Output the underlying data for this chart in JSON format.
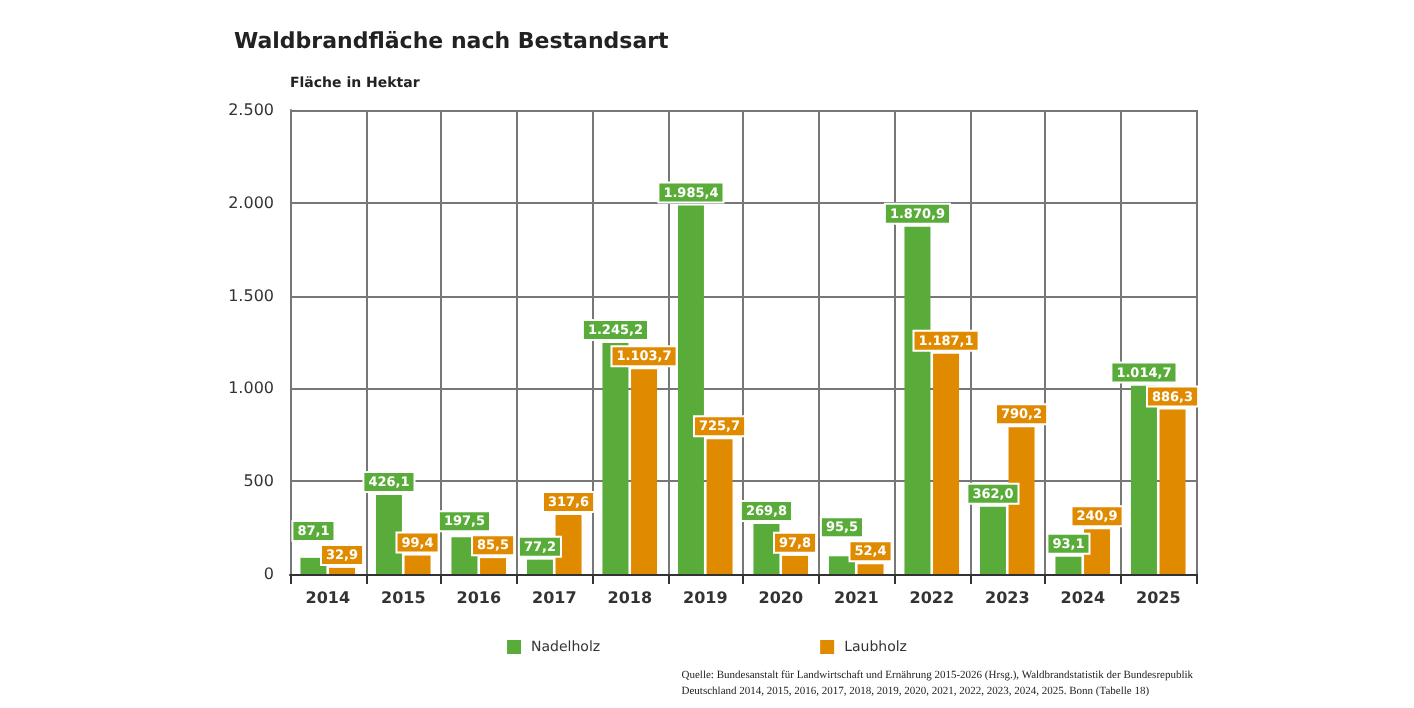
{
  "chart_data": {
    "type": "bar",
    "title": "Waldbrandfläche nach Bestandsart",
    "ylabel": "Fläche in Hektar",
    "categories": [
      "2014",
      "2015",
      "2016",
      "2017",
      "2018",
      "2019",
      "2020",
      "2021",
      "2022",
      "2023",
      "2024",
      "2025"
    ],
    "series": [
      {
        "name": "Nadelholz",
        "color": "#5aac3a",
        "values": [
          87.1,
          426.1,
          197.5,
          77.2,
          1245.2,
          1985.4,
          269.8,
          95.5,
          1870.9,
          362.0,
          93.1,
          1014.7
        ],
        "value_labels": [
          "87,1",
          "426,1",
          "197,5",
          "77,2",
          "1.245,2",
          "1.985,4",
          "269,8",
          "95,5",
          "1.870,9",
          "362,0",
          "93,1",
          "1.014,7"
        ]
      },
      {
        "name": "Laubholz",
        "color": "#e08a00",
        "values": [
          32.9,
          99.4,
          85.5,
          317.6,
          1103.7,
          725.7,
          97.8,
          52.4,
          1187.1,
          790.2,
          240.9,
          886.3
        ],
        "value_labels": [
          "32,9",
          "99,4",
          "85,5",
          "317,6",
          "1.103,7",
          "725,7",
          "97,8",
          "52,4",
          "1.187,1",
          "790,2",
          "240,9",
          "886,3"
        ]
      }
    ],
    "ylim": [
      0,
      2500
    ],
    "yticks": [
      {
        "value": 0,
        "label": "0"
      },
      {
        "value": 500,
        "label": "500"
      },
      {
        "value": 1000,
        "label": "1.000"
      },
      {
        "value": 1500,
        "label": "1.500"
      },
      {
        "value": 2000,
        "label": "2.000"
      },
      {
        "value": 2500,
        "label": "2.500"
      }
    ],
    "grid": true,
    "legend": "bottom",
    "annotations": [
      "Quelle: Bundesanstalt für Landwirtschaft und Ernährung 2015-2026 (Hrsg.), Waldbrandstatistik der Bundesrepublik Deutschland 2014, 2015, 2016, 2017, 2018, 2019, 2020, 2021, 2022, 2023, 2024, 2025. Bonn (Tabelle 18)"
    ]
  }
}
